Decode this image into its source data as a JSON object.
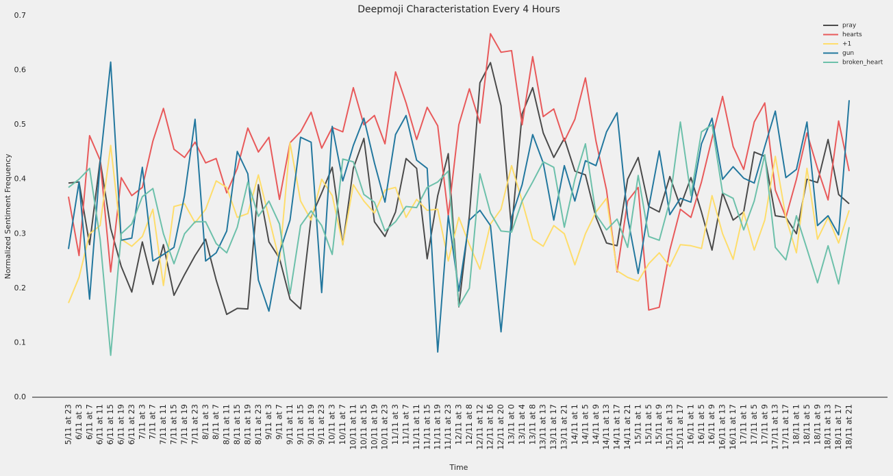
{
  "chart_data": {
    "type": "line",
    "title": "Deepmoji Characteristation Every 4 Hours",
    "xlabel": "Time",
    "ylabel": "Normalized Sentiment Frequency",
    "categories": [
      "5/11 at 23",
      "6/11 at 3",
      "6/11 at 7",
      "6/11 at 11",
      "6/11 at 15",
      "6/11 at 19",
      "6/11 at 23",
      "7/11 at 3",
      "7/11 at 7",
      "7/11 at 11",
      "7/11 at 15",
      "7/11 at 19",
      "7/11 at 23",
      "8/11 at 3",
      "8/11 at 7",
      "8/11 at 11",
      "8/11 at 15",
      "8/11 at 19",
      "8/11 at 23",
      "9/11 at 3",
      "9/11 at 7",
      "9/11 at 11",
      "9/11 at 15",
      "9/11 at 19",
      "9/11 at 23",
      "10/11 at 3",
      "10/11 at 7",
      "10/11 at 11",
      "10/11 at 15",
      "10/11 at 19",
      "10/11 at 23",
      "11/11 at 3",
      "11/11 at 7",
      "11/11 at 11",
      "11/11 at 15",
      "11/11 at 19",
      "11/11 at 23",
      "12/11 at 3",
      "12/11 at 8",
      "12/11 at 12",
      "12/11 at 16",
      "12/11 at 20",
      "13/11 at 0",
      "13/11 at 4",
      "13/11 at 8",
      "13/11 at 13",
      "13/11 at 17",
      "13/11 at 21",
      "14/11 at 1",
      "14/11 at 5",
      "14/11 at 9",
      "14/11 at 13",
      "14/11 at 17",
      "14/11 at 21",
      "15/11 at 1",
      "15/11 at 5",
      "15/11 at 9",
      "15/11 at 13",
      "15/11 at 17",
      "16/11 at 1",
      "16/11 at 5",
      "16/11 at 9",
      "16/11 at 13",
      "16/11 at 17",
      "17/11 at 1",
      "17/11 at 5",
      "17/11 at 9",
      "17/11 at 13",
      "17/11 at 17",
      "18/11 at 1",
      "18/11 at 5",
      "18/11 at 9",
      "18/11 at 13",
      "18/11 at 17",
      "18/11 at 21"
    ],
    "series": [
      {
        "name": "pray",
        "color": "#4a4a4a",
        "values": [
          0.393,
          0.395,
          0.28,
          0.435,
          0.31,
          0.24,
          0.193,
          0.285,
          0.207,
          0.28,
          0.187,
          0.225,
          0.26,
          0.29,
          0.215,
          0.152,
          0.163,
          0.162,
          0.39,
          0.285,
          0.255,
          0.18,
          0.162,
          0.33,
          0.375,
          0.422,
          0.28,
          0.42,
          0.475,
          0.322,
          0.295,
          0.34,
          0.438,
          0.42,
          0.254,
          0.37,
          0.447,
          0.166,
          0.333,
          0.577,
          0.614,
          0.535,
          0.307,
          0.52,
          0.568,
          0.485,
          0.44,
          0.475,
          0.415,
          0.408,
          0.33,
          0.283,
          0.278,
          0.4,
          0.44,
          0.35,
          0.34,
          0.405,
          0.35,
          0.403,
          0.34,
          0.27,
          0.375,
          0.325,
          0.34,
          0.45,
          0.442,
          0.333,
          0.33,
          0.3,
          0.4,
          0.394,
          0.473,
          0.372,
          0.355
        ]
      },
      {
        "name": "hearts",
        "color": "#e8595a",
        "values": [
          0.368,
          0.26,
          0.48,
          0.435,
          0.23,
          0.403,
          0.37,
          0.385,
          0.47,
          0.53,
          0.455,
          0.44,
          0.468,
          0.43,
          0.438,
          0.375,
          0.42,
          0.494,
          0.45,
          0.477,
          0.363,
          0.467,
          0.487,
          0.523,
          0.457,
          0.495,
          0.487,
          0.568,
          0.5,
          0.517,
          0.465,
          0.597,
          0.54,
          0.473,
          0.532,
          0.498,
          0.333,
          0.5,
          0.566,
          0.503,
          0.667,
          0.633,
          0.636,
          0.5,
          0.625,
          0.515,
          0.529,
          0.47,
          0.51,
          0.586,
          0.47,
          0.38,
          0.23,
          0.36,
          0.385,
          0.16,
          0.165,
          0.27,
          0.345,
          0.33,
          0.395,
          0.475,
          0.552,
          0.46,
          0.418,
          0.505,
          0.54,
          0.38,
          0.33,
          0.4,
          0.485,
          0.42,
          0.362,
          0.507,
          0.415
        ]
      },
      {
        "name": "+1",
        "color": "#fedd6b",
        "values": [
          0.173,
          0.22,
          0.3,
          0.315,
          0.462,
          0.29,
          0.277,
          0.295,
          0.345,
          0.205,
          0.35,
          0.355,
          0.32,
          0.345,
          0.397,
          0.385,
          0.33,
          0.337,
          0.408,
          0.33,
          0.25,
          0.467,
          0.36,
          0.325,
          0.4,
          0.37,
          0.28,
          0.39,
          0.36,
          0.338,
          0.38,
          0.385,
          0.33,
          0.363,
          0.343,
          0.345,
          0.25,
          0.33,
          0.28,
          0.235,
          0.318,
          0.345,
          0.425,
          0.36,
          0.29,
          0.277,
          0.315,
          0.3,
          0.243,
          0.3,
          0.34,
          0.365,
          0.232,
          0.22,
          0.213,
          0.245,
          0.265,
          0.24,
          0.28,
          0.278,
          0.273,
          0.37,
          0.3,
          0.253,
          0.34,
          0.27,
          0.325,
          0.442,
          0.33,
          0.265,
          0.42,
          0.29,
          0.33,
          0.283,
          0.343
        ]
      },
      {
        "name": "gun",
        "color": "#22779e",
        "values": [
          0.272,
          0.395,
          0.18,
          0.43,
          0.615,
          0.288,
          0.292,
          0.422,
          0.25,
          0.262,
          0.275,
          0.37,
          0.51,
          0.25,
          0.265,
          0.305,
          0.451,
          0.41,
          0.215,
          0.158,
          0.265,
          0.325,
          0.477,
          0.468,
          0.192,
          0.497,
          0.397,
          0.462,
          0.512,
          0.43,
          0.358,
          0.482,
          0.517,
          0.435,
          0.42,
          0.083,
          0.333,
          0.195,
          0.325,
          0.343,
          0.315,
          0.12,
          0.33,
          0.39,
          0.482,
          0.43,
          0.325,
          0.425,
          0.36,
          0.434,
          0.425,
          0.487,
          0.522,
          0.33,
          0.227,
          0.348,
          0.452,
          0.335,
          0.365,
          0.358,
          0.465,
          0.512,
          0.4,
          0.423,
          0.402,
          0.393,
          0.46,
          0.525,
          0.403,
          0.418,
          0.505,
          0.315,
          0.333,
          0.298,
          0.545
        ]
      },
      {
        "name": "broken_heart",
        "color": "#6cc0aa",
        "values": [
          0.385,
          0.4,
          0.42,
          0.29,
          0.077,
          0.3,
          0.318,
          0.368,
          0.383,
          0.3,
          0.245,
          0.3,
          0.322,
          0.322,
          0.282,
          0.265,
          0.312,
          0.395,
          0.332,
          0.36,
          0.318,
          0.19,
          0.315,
          0.342,
          0.315,
          0.262,
          0.437,
          0.432,
          0.372,
          0.358,
          0.305,
          0.322,
          0.35,
          0.348,
          0.385,
          0.395,
          0.415,
          0.167,
          0.2,
          0.41,
          0.338,
          0.305,
          0.303,
          0.36,
          0.395,
          0.432,
          0.422,
          0.312,
          0.4,
          0.465,
          0.335,
          0.307,
          0.327,
          0.275,
          0.407,
          0.295,
          0.288,
          0.36,
          0.505,
          0.37,
          0.487,
          0.5,
          0.375,
          0.365,
          0.307,
          0.36,
          0.445,
          0.275,
          0.252,
          0.333,
          0.272,
          0.21,
          0.278,
          0.208,
          0.312
        ]
      }
    ],
    "ylim": [
      0,
      0.7
    ],
    "yticks": [
      {
        "value": 0,
        "label": "0.0"
      },
      0.1,
      0.2,
      0.3,
      0.4,
      0.5,
      0.6,
      0.7
    ],
    "grid": false,
    "legend": "upper right"
  }
}
